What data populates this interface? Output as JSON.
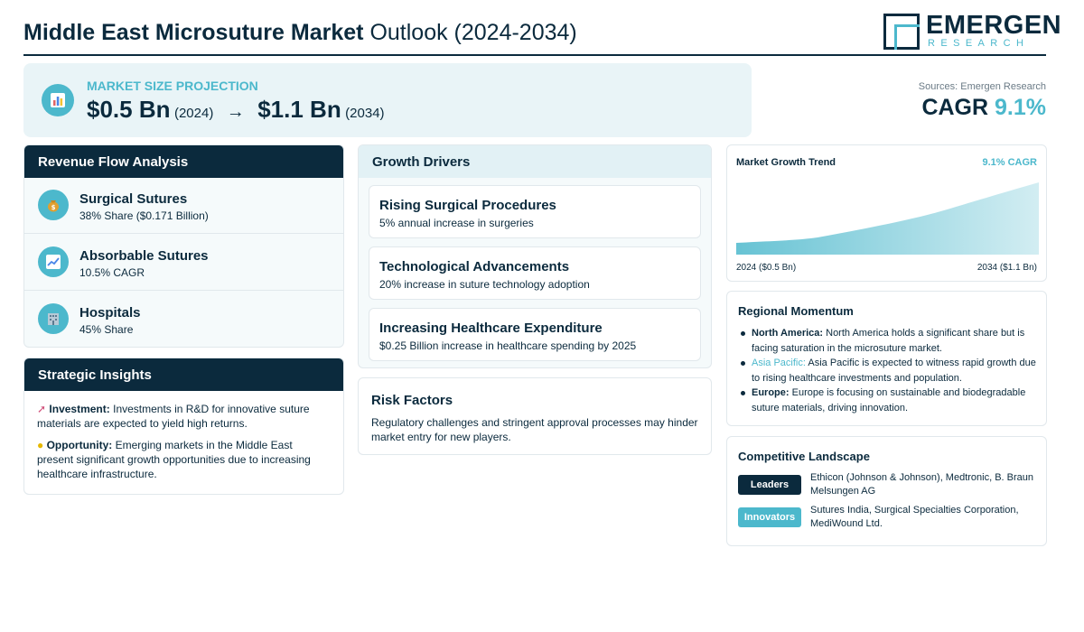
{
  "header": {
    "title_bold": "Middle East Microsuture Market",
    "title_light": "Outlook (2024-2034)",
    "logo_main": "EMERGEN",
    "logo_sub": "RESEARCH"
  },
  "market": {
    "icon": "chart-icon",
    "label": "MARKET SIZE PROJECTION",
    "start_value": "$0.5 Bn",
    "start_year": "(2024)",
    "arrow": "→",
    "end_value": "$1.1 Bn",
    "end_year": "(2034)",
    "sources": "Sources: Emergen Research",
    "cagr_label": "CAGR",
    "cagr_value": "9.1%"
  },
  "revenue": {
    "title": "Revenue Flow Analysis",
    "items": [
      {
        "icon": "money-bag-icon",
        "title": "Surgical Sutures",
        "sub": "38% Share ($0.171 Billion)"
      },
      {
        "icon": "trend-up-icon",
        "title": "Absorbable Sutures",
        "sub": "10.5% CAGR"
      },
      {
        "icon": "hospital-icon",
        "title": "Hospitals",
        "sub": "45% Share"
      }
    ]
  },
  "strategic": {
    "title": "Strategic Insights",
    "investment_label": "Investment:",
    "investment_text": "Investments in R&D for innovative suture materials are expected to yield high returns.",
    "opportunity_label": "Opportunity:",
    "opportunity_text": "Emerging markets in the Middle East present significant growth opportunities due to increasing healthcare infrastructure."
  },
  "drivers": {
    "title": "Growth Drivers",
    "items": [
      {
        "title": "Rising Surgical Procedures",
        "sub": "5% annual increase in surgeries"
      },
      {
        "title": "Technological Advancements",
        "sub": "20% increase in suture technology adoption"
      },
      {
        "title": "Increasing Healthcare Expenditure",
        "sub": "$0.25 Billion increase in healthcare spending by 2025"
      }
    ]
  },
  "risk": {
    "title": "Risk Factors",
    "text": "Regulatory challenges and stringent approval processes may hinder market entry for new players."
  },
  "trend": {
    "title": "Market Growth Trend",
    "cagr": "9.1% CAGR",
    "start_label": "2024 ($0.5 Bn)",
    "end_label": "2034 ($1.1 Bn)",
    "color": "#4cb8cc"
  },
  "regional": {
    "title": "Regional Momentum",
    "items": [
      {
        "name": "North America:",
        "text": "North America holds a significant share but is facing saturation in the microsuture market."
      },
      {
        "name": "Asia Pacific:",
        "text": "Asia Pacific is expected to witness rapid growth due to rising healthcare investments and population."
      },
      {
        "name": "Europe:",
        "text": "Europe is focusing on sustainable and biodegradable suture materials, driving innovation."
      }
    ]
  },
  "competitive": {
    "title": "Competitive Landscape",
    "leaders_label": "Leaders",
    "leaders_text": "Ethicon (Johnson & Johnson), Medtronic, B. Braun Melsungen AG",
    "innovators_label": "Innovators",
    "innovators_text": "Sutures India, Surgical Specialties Corporation, MediWound Ltd."
  },
  "colors": {
    "navy": "#0b2a3d",
    "accent": "#4cb8cc",
    "panel": "#e9f4f7"
  }
}
